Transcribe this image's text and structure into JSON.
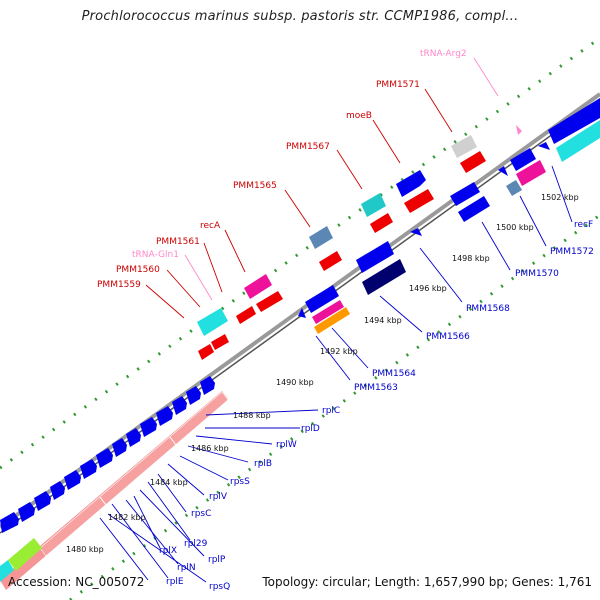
{
  "title": "Prochlorococcus marinus subsp. pastoris str. CCMP1986, compl...",
  "footer": {
    "accession": "Accession: NC_005072",
    "topology": "Topology: circular; Length: 1,657,990 bp; Genes: 1,761"
  },
  "colors": {
    "red_label": "#cc0000",
    "pink_label": "#ff88cc",
    "blue_label": "#0000cc",
    "cds": "#0000ee",
    "dark_cds": "#00006e",
    "red_feature": "#ee0000",
    "magenta": "#ee1199",
    "cyan": "#22e0e0",
    "teal": "#20c8c8",
    "steel": "#5b87b5",
    "orange": "#ff9900",
    "salmon": "#f59595",
    "lime": "#99ee33",
    "grey": "#d0d0d0",
    "backbone": "#888888",
    "dots": "#339933"
  },
  "kbp_ticks": [
    "1480 kbp",
    "1482 kbp",
    "1484 kbp",
    "1486 kbp",
    "1488 kbp",
    "1490 kbp",
    "1492 kbp",
    "1494 kbp",
    "1496 kbp",
    "1498 kbp",
    "1500 kbp",
    "1502 kbp"
  ],
  "labels_top": [
    {
      "text": "tRNA-Arg2",
      "style": "pink"
    },
    {
      "text": "PMM1571",
      "style": "red"
    },
    {
      "text": "moeB",
      "style": "red"
    },
    {
      "text": "PMM1567",
      "style": "red"
    },
    {
      "text": "PMM1565",
      "style": "red"
    },
    {
      "text": "recA",
      "style": "red"
    },
    {
      "text": "PMM1561",
      "style": "red"
    },
    {
      "text": "tRNA-Gln1",
      "style": "pink"
    },
    {
      "text": "PMM1560",
      "style": "red"
    },
    {
      "text": "PMM1559",
      "style": "red"
    }
  ],
  "labels_bottom": [
    {
      "text": "rplC"
    },
    {
      "text": "rplD"
    },
    {
      "text": "rplW"
    },
    {
      "text": "rplB"
    },
    {
      "text": "rpsS"
    },
    {
      "text": "rplV"
    },
    {
      "text": "rpsC"
    },
    {
      "text": "rpl29"
    },
    {
      "text": "rplP"
    },
    {
      "text": "rplX"
    },
    {
      "text": "rplN"
    },
    {
      "text": "rplE"
    },
    {
      "text": "rpsQ"
    },
    {
      "text": "PMM1563"
    },
    {
      "text": "PMM1564"
    },
    {
      "text": "PMM1566"
    },
    {
      "text": "PMM1568"
    },
    {
      "text": "PMM1570"
    },
    {
      "text": "PMM1572"
    },
    {
      "text": "recF"
    }
  ]
}
